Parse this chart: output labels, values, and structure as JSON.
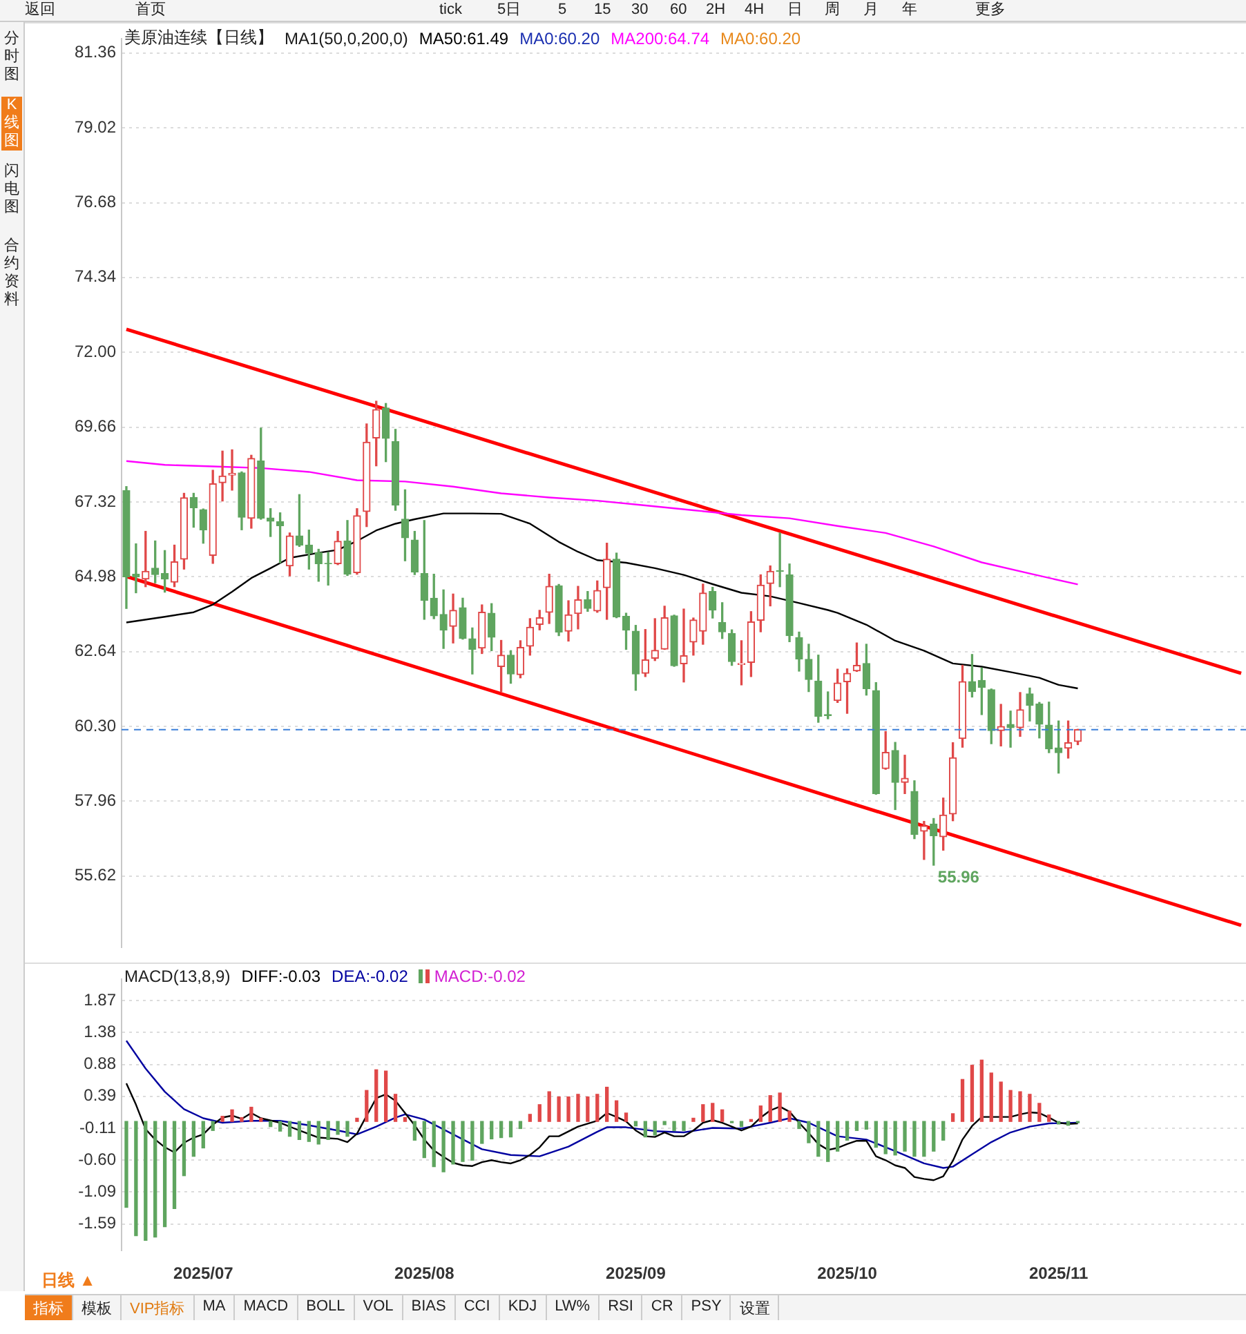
{
  "chart_data": [
    {
      "type": "candlestick",
      "title": "美原油连续【日线】",
      "categories": [
        null,
        null,
        null,
        null,
        null,
        null,
        null,
        null,
        "2025/07",
        null,
        null,
        null,
        null,
        null,
        null,
        null,
        null,
        null,
        null,
        null,
        null,
        null,
        null,
        null,
        null,
        null,
        null,
        null,
        null,
        null,
        null,
        "2025/08",
        null,
        null,
        null,
        null,
        null,
        null,
        null,
        null,
        null,
        null,
        null,
        null,
        null,
        null,
        null,
        null,
        null,
        null,
        null,
        null,
        null,
        "2025/09",
        null,
        null,
        null,
        null,
        null,
        null,
        null,
        null,
        null,
        null,
        null,
        null,
        null,
        null,
        null,
        null,
        null,
        null,
        null,
        null,
        null,
        "2025/10",
        null,
        null,
        null,
        null,
        null,
        null,
        null,
        null,
        null,
        null,
        null,
        null,
        null,
        null,
        null,
        null,
        null,
        null,
        null,
        null,
        null,
        "2025/11",
        null,
        null,
        null,
        null,
        null,
        null,
        null,
        null,
        null,
        null,
        null,
        null,
        null,
        null,
        null,
        null,
        null,
        null,
        null
      ],
      "ohlc": [
        [
          67.67,
          67.8,
          63.99,
          64.98
        ],
        [
          65.06,
          66.01,
          64.48,
          64.98
        ],
        [
          64.91,
          66.4,
          64.67,
          65.15
        ],
        [
          65.25,
          66.1,
          64.79,
          65.05
        ],
        [
          65.08,
          65.8,
          64.5,
          64.91
        ],
        [
          64.81,
          65.97,
          64.67,
          65.45
        ],
        [
          65.53,
          67.59,
          65.22,
          67.45
        ],
        [
          67.46,
          67.59,
          66.53,
          67.14
        ],
        [
          67.08,
          67.1,
          66.03,
          66.45
        ],
        [
          65.65,
          68.31,
          65.4,
          67.89
        ],
        [
          67.92,
          68.91,
          67.35,
          68.13
        ],
        [
          68.16,
          68.95,
          67.69,
          68.21
        ],
        [
          68.23,
          68.26,
          66.45,
          66.84
        ],
        [
          66.81,
          68.78,
          66.5,
          68.68
        ],
        [
          68.6,
          69.63,
          66.78,
          66.81
        ],
        [
          66.82,
          67.11,
          66.24,
          66.72
        ],
        [
          66.7,
          66.98,
          65.42,
          66.58
        ],
        [
          65.32,
          66.35,
          65.01,
          66.26
        ],
        [
          66.26,
          67.55,
          65.93,
          65.97
        ],
        [
          65.97,
          66.44,
          65.22,
          65.72
        ],
        [
          65.74,
          65.84,
          64.84,
          65.39
        ],
        [
          65.4,
          65.74,
          64.72,
          65.39
        ],
        [
          65.39,
          66.4,
          65.36,
          66.09
        ],
        [
          66.1,
          66.74,
          65.02,
          65.06
        ],
        [
          65.11,
          67.11,
          65.06,
          66.89
        ],
        [
          67.02,
          69.76,
          66.55,
          69.19
        ],
        [
          69.32,
          70.47,
          68.45,
          70.21
        ],
        [
          70.26,
          70.4,
          68.58,
          69.31
        ],
        [
          69.21,
          69.59,
          67.06,
          67.22
        ],
        [
          66.78,
          67.7,
          65.48,
          66.2
        ],
        [
          66.13,
          66.4,
          65.05,
          65.13
        ],
        [
          65.08,
          66.74,
          63.65,
          64.24
        ],
        [
          64.31,
          65.06,
          63.67,
          63.76
        ],
        [
          63.8,
          64.57,
          62.74,
          63.31
        ],
        [
          63.43,
          64.44,
          62.91,
          63.93
        ],
        [
          64.01,
          64.31,
          63.03,
          63.05
        ],
        [
          63.04,
          63.38,
          61.94,
          62.71
        ],
        [
          62.75,
          64.1,
          62.58,
          63.87
        ],
        [
          63.84,
          64.14,
          62.67,
          63.09
        ],
        [
          62.17,
          62.99,
          61.39,
          62.53
        ],
        [
          62.53,
          62.67,
          61.65,
          61.94
        ],
        [
          61.92,
          62.98,
          61.82,
          62.77
        ],
        [
          62.81,
          63.67,
          62.53,
          63.4
        ],
        [
          63.49,
          63.93,
          63.32,
          63.7
        ],
        [
          63.87,
          65.06,
          63.52,
          64.68
        ],
        [
          64.7,
          64.74,
          63.14,
          63.25
        ],
        [
          63.28,
          64.23,
          62.97,
          63.79
        ],
        [
          63.83,
          64.68,
          63.35,
          64.26
        ],
        [
          64.26,
          64.52,
          63.9,
          63.99
        ],
        [
          63.91,
          64.85,
          63.87,
          64.55
        ],
        [
          64.64,
          66.03,
          63.65,
          65.53
        ],
        [
          65.53,
          65.72,
          63.7,
          63.73
        ],
        [
          63.74,
          63.84,
          62.71,
          63.31
        ],
        [
          63.28,
          63.46,
          61.43,
          61.94
        ],
        [
          61.96,
          63.33,
          61.86,
          62.38
        ],
        [
          62.43,
          63.67,
          62.36,
          62.68
        ],
        [
          62.72,
          64.06,
          62.71,
          63.7
        ],
        [
          63.76,
          63.78,
          62.18,
          62.2
        ],
        [
          62.26,
          63.97,
          61.69,
          62.51
        ],
        [
          62.94,
          63.69,
          62.53,
          63.63
        ],
        [
          63.28,
          64.75,
          62.87,
          64.47
        ],
        [
          64.52,
          64.65,
          63.69,
          63.94
        ],
        [
          63.55,
          64.17,
          63.05,
          63.26
        ],
        [
          63.21,
          63.32,
          62.21,
          62.33
        ],
        [
          62.24,
          62.98,
          61.6,
          62.27
        ],
        [
          62.3,
          63.89,
          61.86,
          63.57
        ],
        [
          63.62,
          65.04,
          63.26,
          64.72
        ],
        [
          64.77,
          65.32,
          64.07,
          65.15
        ],
        [
          65.17,
          66.35,
          64.67,
          65.15
        ],
        [
          65.04,
          65.38,
          62.95,
          63.14
        ],
        [
          63.08,
          63.25,
          62.03,
          62.41
        ],
        [
          62.4,
          62.87,
          61.39,
          61.77
        ],
        [
          61.72,
          62.53,
          60.43,
          60.62
        ],
        [
          60.67,
          61.38,
          60.54,
          60.64
        ],
        [
          61.11,
          62.09,
          61.05,
          61.66
        ],
        [
          61.7,
          62.1,
          60.71,
          61.96
        ],
        [
          62.04,
          62.91,
          62.02,
          62.21
        ],
        [
          62.27,
          62.87,
          61.28,
          61.48
        ],
        [
          61.42,
          61.67,
          58.18,
          58.2
        ],
        [
          58.98,
          60.14,
          58.96,
          59.49
        ],
        [
          59.55,
          59.8,
          57.7,
          58.55
        ],
        [
          58.55,
          59.4,
          58.2,
          58.68
        ],
        [
          58.27,
          58.6,
          56.79,
          56.92
        ],
        [
          57.02,
          57.33,
          56.14,
          57.19
        ],
        [
          57.25,
          57.42,
          55.96,
          56.88
        ],
        [
          56.85,
          58.06,
          56.43,
          57.53
        ],
        [
          57.56,
          59.79,
          57.35,
          59.32
        ],
        [
          59.92,
          62.21,
          59.65,
          61.7
        ],
        [
          61.7,
          62.55,
          61.22,
          61.39
        ],
        [
          61.74,
          62.13,
          60.67,
          61.52
        ],
        [
          61.45,
          61.47,
          59.76,
          60.17
        ],
        [
          60.17,
          60.99,
          59.69,
          60.3
        ],
        [
          60.36,
          60.78,
          59.65,
          60.26
        ],
        [
          60.26,
          61.36,
          59.99,
          60.82
        ],
        [
          61.32,
          61.5,
          60.47,
          60.96
        ],
        [
          61.0,
          61.05,
          59.94,
          60.37
        ],
        [
          60.34,
          61.06,
          59.48,
          59.6
        ],
        [
          59.63,
          60.47,
          58.84,
          59.48
        ],
        [
          59.62,
          60.47,
          59.31,
          59.79
        ],
        [
          59.83,
          60.21,
          59.73,
          60.2
        ],
        null,
        null,
        null,
        null,
        null,
        null,
        null,
        null,
        null,
        null,
        null,
        null,
        null,
        null,
        null,
        null,
        null
      ],
      "colors": [
        "#5fa55f",
        "#5fa55f",
        "#e04848",
        "#5fa55f",
        "#5fa55f",
        "#e04848",
        "#e04848",
        "#5fa55f",
        "#5fa55f",
        "#e04848",
        "#e04848",
        "#e04848",
        "#5fa55f",
        "#e04848",
        "#5fa55f",
        "#5fa55f",
        "#5fa55f",
        "#e04848",
        "#5fa55f",
        "#5fa55f",
        "#5fa55f",
        "#5fa55f",
        "#e04848",
        "#5fa55f",
        "#e04848",
        "#e04848",
        "#e04848",
        "#5fa55f",
        "#5fa55f",
        "#5fa55f",
        "#5fa55f",
        "#5fa55f",
        "#5fa55f",
        "#5fa55f",
        "#e04848",
        "#5fa55f",
        "#5fa55f",
        "#e04848",
        "#5fa55f",
        "#e04848",
        "#5fa55f",
        "#e04848",
        "#e04848",
        "#e04848",
        "#e04848",
        "#5fa55f",
        "#e04848",
        "#e04848",
        "#5fa55f",
        "#e04848",
        "#e04848",
        "#5fa55f",
        "#5fa55f",
        "#5fa55f",
        "#e04848",
        "#e04848",
        "#e04848",
        "#5fa55f",
        "#e04848",
        "#e04848",
        "#e04848",
        "#5fa55f",
        "#5fa55f",
        "#5fa55f",
        "#e04848",
        "#e04848",
        "#e04848",
        "#e04848",
        "#5fa55f",
        "#5fa55f",
        "#5fa55f",
        "#5fa55f",
        "#5fa55f",
        "#5fa55f",
        "#e04848",
        "#e04848",
        "#e04848",
        "#5fa55f",
        "#5fa55f",
        "#e04848",
        "#5fa55f",
        "#e04848",
        "#5fa55f",
        "#e04848",
        "#5fa55f",
        "#e04848",
        "#e04848",
        "#e04848",
        "#5fa55f",
        "#5fa55f",
        "#5fa55f",
        "#e04848",
        "#5fa55f",
        "#e04848",
        "#5fa55f",
        "#5fa55f",
        "#5fa55f",
        "#5fa55f",
        "#e04848",
        "#e04848",
        null,
        null,
        null,
        null,
        null,
        null,
        null,
        null,
        null,
        null,
        null,
        null,
        null,
        null,
        null,
        null,
        null
      ],
      "series": [
        {
          "name": "MA50:61.49",
          "type": "line",
          "color": "#000000",
          "values": [
            63.55,
            null,
            null,
            null,
            63.73,
            null,
            null,
            63.87,
            null,
            64.11,
            null,
            64.51,
            null,
            64.94,
            null,
            65.25,
            null,
            65.57,
            null,
            null,
            65.73,
            null,
            65.82,
            null,
            66.1,
            null,
            66.43,
            null,
            66.64,
            null,
            66.78,
            null,
            null,
            66.96,
            null,
            null,
            66.96,
            null,
            null,
            66.95,
            null,
            null,
            66.64,
            null,
            null,
            66.07,
            null,
            65.76,
            null,
            65.5,
            null,
            null,
            65.42,
            null,
            null,
            65.25,
            null,
            null,
            65.04,
            null,
            null,
            64.75,
            null,
            null,
            64.48,
            null,
            null,
            64.37,
            null,
            null,
            64.16,
            null,
            null,
            63.94,
            63.85,
            null,
            null,
            63.48,
            null,
            null,
            62.98,
            null,
            null,
            62.67,
            null,
            null,
            62.27,
            null,
            null,
            62.17,
            null,
            null,
            62.0,
            null,
            null,
            61.82,
            null,
            61.6,
            null,
            61.49,
            null,
            null,
            null,
            null,
            null,
            null,
            null,
            null,
            null,
            null,
            null,
            null,
            null,
            null,
            null,
            null,
            null
          ]
        },
        {
          "name": "MA200:64.74",
          "type": "line",
          "color": "#ff00ff",
          "values": [
            68.6,
            null,
            null,
            null,
            68.48,
            null,
            null,
            null,
            null,
            68.43,
            null,
            null,
            null,
            null,
            68.38,
            null,
            null,
            null,
            null,
            68.26,
            null,
            null,
            null,
            null,
            68.0,
            null,
            null,
            null,
            null,
            67.96,
            null,
            null,
            null,
            null,
            67.8,
            null,
            null,
            null,
            null,
            67.59,
            null,
            null,
            null,
            null,
            67.46,
            null,
            null,
            null,
            null,
            67.36,
            null,
            null,
            null,
            null,
            67.21,
            null,
            null,
            null,
            null,
            67.06,
            null,
            null,
            null,
            null,
            66.91,
            null,
            null,
            null,
            null,
            66.81,
            null,
            null,
            null,
            null,
            66.57,
            null,
            null,
            null,
            null,
            66.35,
            null,
            null,
            null,
            null,
            65.93,
            null,
            null,
            null,
            null,
            65.43,
            null,
            null,
            null,
            null,
            65.08,
            null,
            null,
            null,
            null,
            64.74,
            null,
            null,
            null,
            null,
            null,
            null,
            null,
            null,
            null,
            null,
            null,
            null,
            null,
            null,
            null,
            null,
            null
          ]
        },
        {
          "type": "line",
          "color": "#ff0000",
          "values": [
            72.72,
            null,
            null,
            null,
            null,
            null,
            null,
            null,
            null,
            null,
            null,
            null,
            null,
            null,
            null,
            null,
            null,
            null,
            null,
            null,
            null,
            null,
            null,
            null,
            null,
            null,
            null,
            null,
            null,
            null,
            null,
            null,
            null,
            null,
            null,
            null,
            null,
            null,
            null,
            null,
            null,
            null,
            null,
            null,
            null,
            null,
            null,
            null,
            null,
            null,
            null,
            null,
            null,
            null,
            null,
            null,
            null,
            null,
            null,
            null,
            null,
            null,
            null,
            null,
            null,
            null,
            null,
            null,
            null,
            null,
            null,
            null,
            null,
            null,
            null,
            null,
            null,
            null,
            null,
            null,
            null,
            null,
            null,
            null,
            null,
            null,
            null,
            null,
            null,
            null,
            null,
            null,
            null,
            null,
            null,
            null,
            null,
            null,
            null,
            null,
            null,
            null,
            null,
            null,
            null,
            null,
            null,
            null,
            null,
            null,
            null,
            null,
            null,
            null,
            null,
            null,
            61.96
          ]
        },
        {
          "type": "line",
          "color": "#ff0000",
          "values": [
            64.99,
            null,
            null,
            null,
            null,
            null,
            null,
            null,
            null,
            null,
            null,
            null,
            null,
            null,
            null,
            null,
            null,
            null,
            null,
            null,
            null,
            null,
            null,
            null,
            null,
            null,
            null,
            null,
            null,
            null,
            null,
            null,
            null,
            null,
            null,
            null,
            null,
            null,
            null,
            null,
            null,
            null,
            null,
            null,
            null,
            null,
            null,
            null,
            null,
            null,
            null,
            null,
            null,
            null,
            null,
            null,
            null,
            null,
            null,
            null,
            null,
            null,
            null,
            null,
            null,
            null,
            null,
            null,
            null,
            null,
            null,
            null,
            null,
            null,
            null,
            null,
            null,
            null,
            null,
            null,
            null,
            null,
            null,
            null,
            null,
            null,
            null,
            null,
            null,
            null,
            null,
            null,
            null,
            null,
            null,
            null,
            null,
            null,
            null,
            null,
            null,
            null,
            null,
            null,
            null,
            null,
            null,
            null,
            null,
            null,
            null,
            null,
            null,
            null,
            null,
            null,
            54.08
          ]
        }
      ],
      "ylim": [
        53.4,
        81.8
      ],
      "yticks": [
        55.62,
        57.96,
        {
          "value": 60.3,
          "label": "60.30"
        },
        62.64,
        64.98,
        67.32,
        69.66,
        {
          "value": 72,
          "label": "72.00"
        },
        74.34,
        76.68,
        79.02,
        81.36
      ],
      "grid": "y",
      "legend": "top left",
      "tick_labels": "y",
      "ref_lines": [
        {
          "axis": "y",
          "value": 60.2,
          "color": "#3b7fd9",
          "line_style": "dashed"
        }
      ],
      "annotations": [
        "MA1(50,0,200,0)",
        "MA0:60.20",
        "MA0:60.20",
        "55.96"
      ]
    },
    {
      "type": "bar",
      "title": "MACD(13,8,9)",
      "categories": [
        null,
        null,
        null,
        null,
        null,
        null,
        null,
        null,
        "2025/07",
        null,
        null,
        null,
        null,
        null,
        null,
        null,
        null,
        null,
        null,
        null,
        null,
        null,
        null,
        null,
        null,
        null,
        null,
        null,
        null,
        null,
        null,
        "2025/08",
        null,
        null,
        null,
        null,
        null,
        null,
        null,
        null,
        null,
        null,
        null,
        null,
        null,
        null,
        null,
        null,
        null,
        null,
        null,
        null,
        null,
        "2025/09",
        null,
        null,
        null,
        null,
        null,
        null,
        null,
        null,
        null,
        null,
        null,
        null,
        null,
        null,
        null,
        null,
        null,
        null,
        null,
        null,
        null,
        "2025/10",
        null,
        null,
        null,
        null,
        null,
        null,
        null,
        null,
        null,
        null,
        null,
        null,
        null,
        null,
        null,
        null,
        null,
        null,
        null,
        null,
        null,
        "2025/11",
        null,
        null,
        null,
        null,
        null,
        null,
        null,
        null,
        null,
        null,
        null,
        null,
        null,
        null,
        null,
        null,
        null,
        null,
        null
      ],
      "series": [
        {
          "name": "DIFF:-0.03",
          "type": "line",
          "color": "#000000",
          "values": [
            0.59,
            0.26,
            -0.12,
            -0.28,
            -0.4,
            -0.48,
            -0.33,
            -0.25,
            -0.2,
            -0.05,
            0.06,
            0.09,
            0.04,
            0.13,
            0.05,
            null,
            -0.02,
            null,
            -0.14,
            null,
            -0.25,
            null,
            -0.27,
            -0.32,
            -0.19,
            0.09,
            0.36,
            0.42,
            0.32,
            0.13,
            -0.06,
            -0.28,
            -0.45,
            -0.55,
            -0.64,
            -0.68,
            -0.69,
            -0.63,
            -0.6,
            -0.63,
            -0.65,
            -0.6,
            -0.52,
            -0.4,
            -0.23,
            -0.23,
            null,
            -0.08,
            null,
            0.01,
            0.13,
            0.07,
            0.0,
            -0.14,
            -0.23,
            -0.24,
            -0.17,
            -0.23,
            -0.23,
            -0.14,
            -0.02,
            0.02,
            -0.02,
            -0.08,
            -0.14,
            -0.08,
            0.06,
            0.17,
            0.23,
            0.15,
            -0.02,
            -0.18,
            -0.35,
            -0.44,
            -0.41,
            -0.35,
            -0.3,
            -0.3,
            -0.54,
            -0.6,
            -0.68,
            -0.72,
            -0.86,
            -0.89,
            -0.91,
            -0.85,
            -0.61,
            -0.28,
            -0.07,
            0.07,
            0.07,
            0.07,
            0.07,
            0.11,
            0.14,
            0.13,
            0.06,
            -0.02,
            -0.04,
            -0.03,
            null,
            null,
            null,
            null,
            null,
            null,
            null,
            null,
            null,
            null,
            null,
            null,
            null,
            null,
            null,
            null,
            null
          ]
        },
        {
          "name": "DEA:-0.02",
          "type": "line",
          "color": "#0000a0",
          "values": [
            1.25,
            null,
            0.82,
            null,
            0.46,
            null,
            0.19,
            null,
            0.05,
            null,
            -0.02,
            null,
            null,
            0.01,
            null,
            null,
            0.01,
            null,
            null,
            -0.06,
            null,
            null,
            -0.14,
            null,
            -0.2,
            null,
            -0.08,
            null,
            0.06,
            0.11,
            null,
            0.03,
            null,
            null,
            -0.2,
            null,
            null,
            -0.43,
            null,
            null,
            -0.52,
            null,
            null,
            -0.54,
            null,
            null,
            -0.39,
            null,
            null,
            -0.16,
            -0.09,
            null,
            -0.09,
            null,
            null,
            -0.15,
            null,
            null,
            -0.17,
            null,
            null,
            -0.1,
            null,
            null,
            -0.11,
            null,
            null,
            -0.02,
            null,
            0.05,
            null,
            -0.02,
            null,
            null,
            -0.23,
            null,
            null,
            -0.28,
            null,
            null,
            -0.46,
            null,
            null,
            -0.65,
            null,
            -0.72,
            -0.7,
            null,
            -0.51,
            null,
            -0.32,
            null,
            -0.17,
            null,
            -0.08,
            null,
            -0.03,
            null,
            null,
            -0.02,
            null,
            null,
            null,
            null,
            null,
            null,
            null,
            null,
            null,
            null,
            null,
            null,
            null,
            null,
            null,
            null,
            null
          ]
        },
        {
          "name": "MACD:-0.02",
          "type": "bar",
          "values": [
            -1.33,
            -1.77,
            -1.84,
            -1.79,
            -1.63,
            -1.35,
            -0.84,
            -0.54,
            -0.41,
            -0.14,
            0.08,
            0.18,
            0.06,
            0.22,
            0.05,
            -0.08,
            -0.15,
            -0.23,
            -0.28,
            -0.31,
            -0.35,
            -0.28,
            -0.2,
            -0.23,
            0.05,
            0.48,
            0.8,
            0.78,
            0.42,
            0.06,
            -0.29,
            -0.56,
            -0.7,
            -0.78,
            -0.66,
            -0.62,
            -0.6,
            -0.34,
            -0.27,
            -0.25,
            -0.24,
            -0.11,
            0.11,
            0.26,
            0.46,
            0.38,
            0.38,
            0.42,
            0.38,
            0.42,
            0.53,
            0.32,
            0.13,
            -0.07,
            -0.24,
            -0.21,
            -0.05,
            -0.14,
            -0.14,
            0.05,
            0.26,
            0.28,
            0.18,
            -0.02,
            -0.08,
            0.03,
            0.24,
            0.4,
            0.44,
            0.16,
            -0.11,
            -0.33,
            -0.54,
            -0.62,
            -0.46,
            -0.29,
            -0.14,
            -0.12,
            -0.4,
            -0.5,
            -0.52,
            -0.46,
            -0.54,
            -0.54,
            -0.46,
            -0.29,
            0.12,
            0.65,
            0.87,
            0.95,
            0.75,
            0.61,
            0.48,
            0.46,
            0.42,
            0.28,
            0.1,
            -0.04,
            -0.06,
            -0.02,
            null,
            null,
            null,
            null,
            null,
            null,
            null,
            null,
            null,
            null,
            null,
            null,
            null,
            null,
            null,
            null,
            null
          ],
          "colors": [
            "#5fa55f",
            "#5fa55f",
            "#5fa55f",
            "#5fa55f",
            "#5fa55f",
            "#5fa55f",
            "#5fa55f",
            "#5fa55f",
            "#5fa55f",
            "#5fa55f",
            "#e04848",
            "#e04848",
            "#e04848",
            "#e04848",
            "#e04848",
            "#5fa55f",
            "#5fa55f",
            "#5fa55f",
            "#5fa55f",
            "#5fa55f",
            "#5fa55f",
            "#5fa55f",
            "#5fa55f",
            "#5fa55f",
            "#e04848",
            "#e04848",
            "#e04848",
            "#e04848",
            "#e04848",
            "#e04848",
            "#5fa55f",
            "#5fa55f",
            "#5fa55f",
            "#5fa55f",
            "#5fa55f",
            "#5fa55f",
            "#5fa55f",
            "#5fa55f",
            "#5fa55f",
            "#5fa55f",
            "#5fa55f",
            "#5fa55f",
            "#e04848",
            "#e04848",
            "#e04848",
            "#e04848",
            "#e04848",
            "#e04848",
            "#e04848",
            "#e04848",
            "#e04848",
            "#e04848",
            "#e04848",
            "#5fa55f",
            "#5fa55f",
            "#5fa55f",
            "#5fa55f",
            "#5fa55f",
            "#5fa55f",
            "#e04848",
            "#e04848",
            "#e04848",
            "#e04848",
            "#5fa55f",
            "#5fa55f",
            "#e04848",
            "#e04848",
            "#e04848",
            "#e04848",
            "#e04848",
            "#5fa55f",
            "#5fa55f",
            "#5fa55f",
            "#5fa55f",
            "#5fa55f",
            "#5fa55f",
            "#5fa55f",
            "#5fa55f",
            "#5fa55f",
            "#5fa55f",
            "#5fa55f",
            "#5fa55f",
            "#5fa55f",
            "#5fa55f",
            "#5fa55f",
            "#5fa55f",
            "#e04848",
            "#e04848",
            "#e04848",
            "#e04848",
            "#e04848",
            "#e04848",
            "#e04848",
            "#e04848",
            "#e04848",
            "#e04848",
            "#e04848",
            "#5fa55f",
            "#5fa55f",
            "#5fa55f",
            null,
            null,
            null,
            null,
            null,
            null,
            null,
            null,
            null,
            null,
            null,
            null,
            null,
            null,
            null,
            null,
            null
          ]
        }
      ],
      "ylim": [
        -2.0,
        2.2
      ],
      "yticks": [
        -1.59,
        -1.09,
        {
          "value": -0.6,
          "label": "-0.60"
        },
        -0.11,
        0.39,
        0.88,
        1.38,
        1.87
      ],
      "grid": "y",
      "legend": "top left"
    },
    {
      "type": "other",
      "annotations": [
        "返回",
        "首页",
        "tick",
        "5日",
        "5",
        "15",
        "30",
        "60",
        "2H",
        "4H",
        "日",
        "周",
        "月",
        "年",
        "更多",
        "分时图",
        "K线图",
        "闪电图",
        "合约资料",
        "日线 ▲",
        "指标",
        "模板",
        "VIP指标",
        "MA",
        "MACD",
        "BOLL",
        "VOL",
        "BIAS",
        "CCI",
        "KDJ",
        "LW%",
        "RSI",
        "CR",
        "PSY",
        "设置"
      ]
    }
  ]
}
